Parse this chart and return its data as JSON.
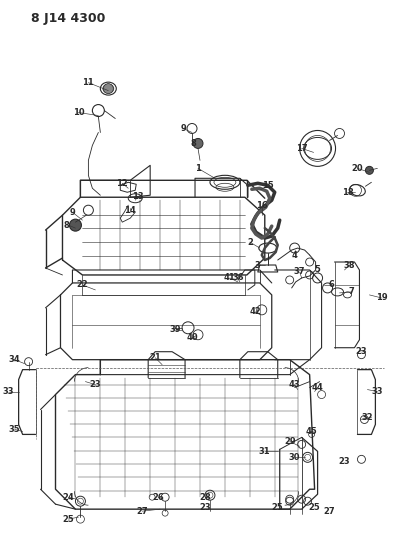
{
  "title": "8 J14 4300",
  "bg_color": "#ffffff",
  "line_color": "#2a2a2a",
  "fig_width": 4.02,
  "fig_height": 5.33,
  "dpi": 100
}
